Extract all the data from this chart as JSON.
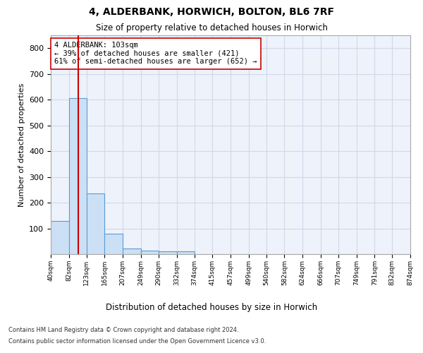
{
  "title1": "4, ALDERBANK, HORWICH, BOLTON, BL6 7RF",
  "title2": "Size of property relative to detached houses in Horwich",
  "xlabel": "Distribution of detached houses by size in Horwich",
  "ylabel": "Number of detached properties",
  "bar_edges": [
    40,
    82,
    123,
    165,
    207,
    249,
    290,
    332,
    374,
    415,
    457,
    499,
    540,
    582,
    624,
    666,
    707,
    749,
    791,
    832,
    874
  ],
  "bar_heights": [
    130,
    605,
    235,
    80,
    22,
    14,
    10,
    10,
    0,
    0,
    0,
    0,
    0,
    0,
    0,
    0,
    0,
    0,
    0,
    0
  ],
  "bar_color": "#cce0f5",
  "bar_edge_color": "#5b9bd5",
  "grid_color": "#d0d8e8",
  "background_color": "#eef2fb",
  "vline_x": 103,
  "vline_color": "#cc0000",
  "annotation_line1": "4 ALDERBANK: 103sqm",
  "annotation_line2": "← 39% of detached houses are smaller (421)",
  "annotation_line3": "61% of semi-detached houses are larger (652) →",
  "annotation_box_color": "#ffffff",
  "annotation_box_edge": "#cc0000",
  "ylim": [
    0,
    850
  ],
  "yticks": [
    0,
    100,
    200,
    300,
    400,
    500,
    600,
    700,
    800
  ],
  "footnote1": "Contains HM Land Registry data © Crown copyright and database right 2024.",
  "footnote2": "Contains public sector information licensed under the Open Government Licence v3.0."
}
